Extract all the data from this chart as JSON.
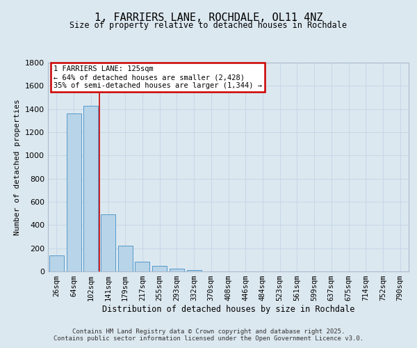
{
  "title": "1, FARRIERS LANE, ROCHDALE, OL11 4NZ",
  "subtitle": "Size of property relative to detached houses in Rochdale",
  "xlabel": "Distribution of detached houses by size in Rochdale",
  "ylabel": "Number of detached properties",
  "bar_labels": [
    "26sqm",
    "64sqm",
    "102sqm",
    "141sqm",
    "179sqm",
    "217sqm",
    "255sqm",
    "293sqm",
    "332sqm",
    "370sqm",
    "408sqm",
    "446sqm",
    "484sqm",
    "523sqm",
    "561sqm",
    "599sqm",
    "637sqm",
    "675sqm",
    "714sqm",
    "752sqm",
    "790sqm"
  ],
  "bar_values": [
    140,
    1365,
    1430,
    495,
    225,
    85,
    50,
    25,
    10,
    0,
    0,
    0,
    0,
    0,
    0,
    0,
    0,
    0,
    0,
    0,
    0
  ],
  "bar_color": "#b8d4e8",
  "bar_edge_color": "#5599cc",
  "grid_color": "#c8d8e8",
  "background_color": "#dce8f0",
  "vline_x": 2.5,
  "vline_color": "#cc0000",
  "annotation_title": "1 FARRIERS LANE: 125sqm",
  "annotation_line1": "← 64% of detached houses are smaller (2,428)",
  "annotation_line2": "35% of semi-detached houses are larger (1,344) →",
  "annotation_box_color": "#ffffff",
  "annotation_box_edge": "#cc0000",
  "ylim": [
    0,
    1800
  ],
  "yticks": [
    0,
    200,
    400,
    600,
    800,
    1000,
    1200,
    1400,
    1600,
    1800
  ],
  "footer1": "Contains HM Land Registry data © Crown copyright and database right 2025.",
  "footer2": "Contains public sector information licensed under the Open Government Licence v3.0."
}
